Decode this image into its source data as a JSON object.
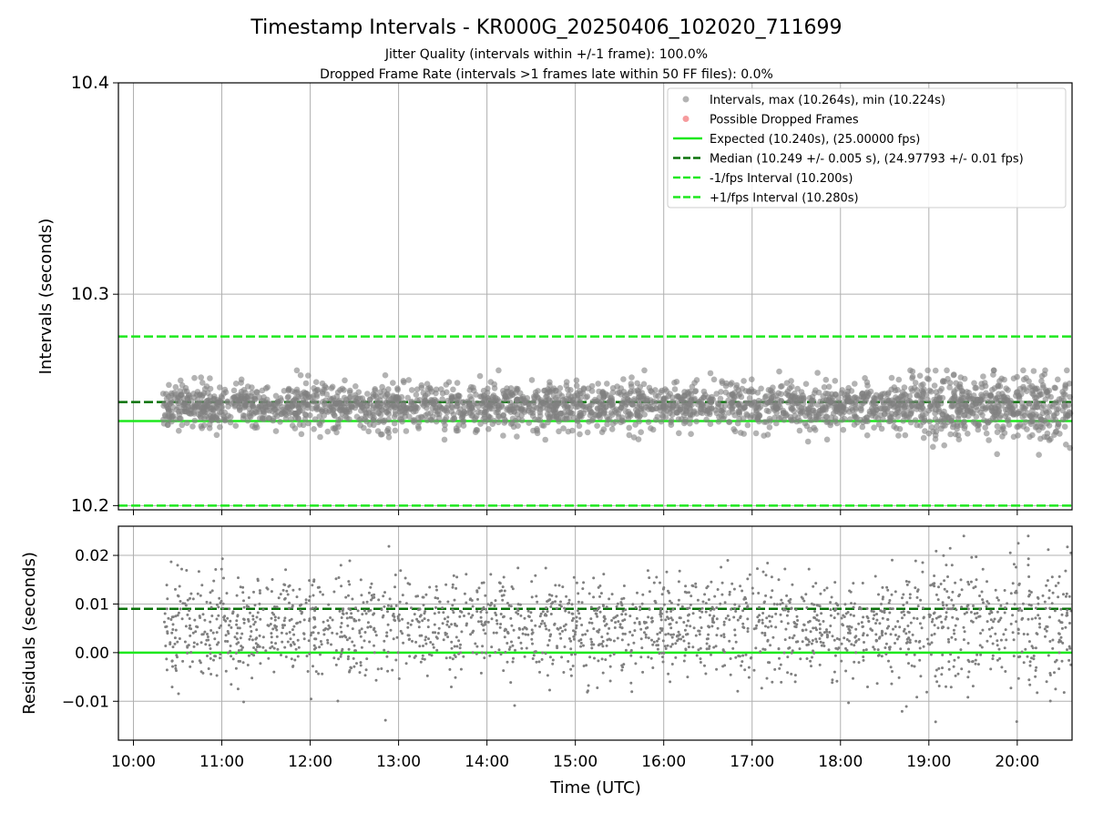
{
  "figure": {
    "title": "Timestamp Intervals - KR000G_20250406_102020_711699",
    "subtitle1": "Jitter Quality (intervals within +/-1 frame): 100.0%",
    "subtitle2": "Dropped Frame Rate (intervals >1 frames late within 50 FF files): 0.0%"
  },
  "chart_data": [
    {
      "type": "scatter",
      "panel": "intervals",
      "ylabel": "Intervals (seconds)",
      "xlabel": "",
      "ylim": [
        10.198,
        10.4
      ],
      "yticks": [
        10.2,
        10.3,
        10.4
      ],
      "ytick_labels": [
        "10.2",
        "10.3",
        "10.4"
      ],
      "xlim_hours": [
        9.83,
        20.62
      ],
      "grid": true,
      "legend_position": "upper-right",
      "series": [
        {
          "name": "Intervals, max (10.264s), min (10.224s)",
          "kind": "scatter",
          "color": "#808080",
          "x_range": [
            "10:20",
            "20:37"
          ],
          "y_typical": [
            10.236,
            10.258
          ],
          "y_max": 10.264,
          "y_min": 10.224
        },
        {
          "name": "Possible Dropped Frames",
          "kind": "scatter",
          "color": "#f0595c",
          "points": []
        },
        {
          "name": "Expected (10.240s), (25.00000 fps)",
          "kind": "hline",
          "y": 10.24,
          "color": "#1ee81e",
          "style": "solid"
        },
        {
          "name": "Median (10.249 +/- 0.005 s), (24.97793 +/- 0.01 fps)",
          "kind": "hline",
          "y": 10.249,
          "color": "#0a720a",
          "style": "dashed"
        },
        {
          "name": "-1/fps Interval (10.200s)",
          "kind": "hline",
          "y": 10.2,
          "color": "#1ee81e",
          "style": "dashed"
        },
        {
          "name": "+1/fps Interval (10.280s)",
          "kind": "hline",
          "y": 10.28,
          "color": "#1ee81e",
          "style": "dashed"
        }
      ]
    },
    {
      "type": "scatter",
      "panel": "residuals",
      "xlabel": "Time (UTC)",
      "ylabel": "Residuals (seconds)",
      "ylim": [
        -0.018,
        0.026
      ],
      "yticks": [
        -0.01,
        0.0,
        0.01,
        0.02
      ],
      "ytick_labels": [
        "−0.01",
        "0.00",
        "0.01",
        "0.02"
      ],
      "xlim_hours": [
        9.83,
        20.62
      ],
      "xticks": [
        "10:00",
        "11:00",
        "12:00",
        "13:00",
        "14:00",
        "15:00",
        "16:00",
        "17:00",
        "18:00",
        "19:00",
        "20:00"
      ],
      "grid": true,
      "series": [
        {
          "name": "Residuals",
          "kind": "scatter",
          "color": "#808080",
          "x_range": [
            "10:20",
            "20:37"
          ],
          "y_typical": [
            -0.005,
            0.016
          ],
          "y_max": 0.024,
          "y_min": -0.016
        },
        {
          "name": "Expected",
          "kind": "hline",
          "y": 0.0,
          "color": "#1ee81e",
          "style": "solid"
        },
        {
          "name": "Median",
          "kind": "hline",
          "y": 0.009,
          "color": "#0a720a",
          "style": "dashed"
        }
      ]
    }
  ],
  "colors": {
    "scatter": "#808080",
    "dropped": "#f0595c",
    "expected": "#1ee81e",
    "median": "#0a720a",
    "grid": "#b0b0b0"
  }
}
